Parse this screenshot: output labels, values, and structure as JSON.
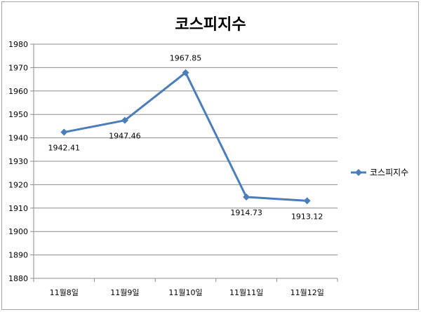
{
  "chart_data": {
    "type": "line",
    "title": "코스피지수",
    "categories": [
      "11월8일",
      "11월9일",
      "11월10일",
      "11월11일",
      "11월12일"
    ],
    "series": [
      {
        "name": "코스피지수",
        "values": [
          1942.41,
          1947.46,
          1967.85,
          1914.73,
          1913.12
        ],
        "data_labels": [
          "1942.41",
          "1947.46",
          "1967.85",
          "1914.73",
          "1913.12"
        ],
        "color": "#4a7ebb",
        "marker": "diamond"
      }
    ],
    "ylim": [
      1880,
      1980
    ],
    "ytick_step": 10,
    "ytick_labels": [
      "1880",
      "1890",
      "1900",
      "1910",
      "1920",
      "1930",
      "1940",
      "1950",
      "1960",
      "1970",
      "1980"
    ],
    "grid": true,
    "legend_position": "right",
    "xlabel": "",
    "ylabel": ""
  }
}
